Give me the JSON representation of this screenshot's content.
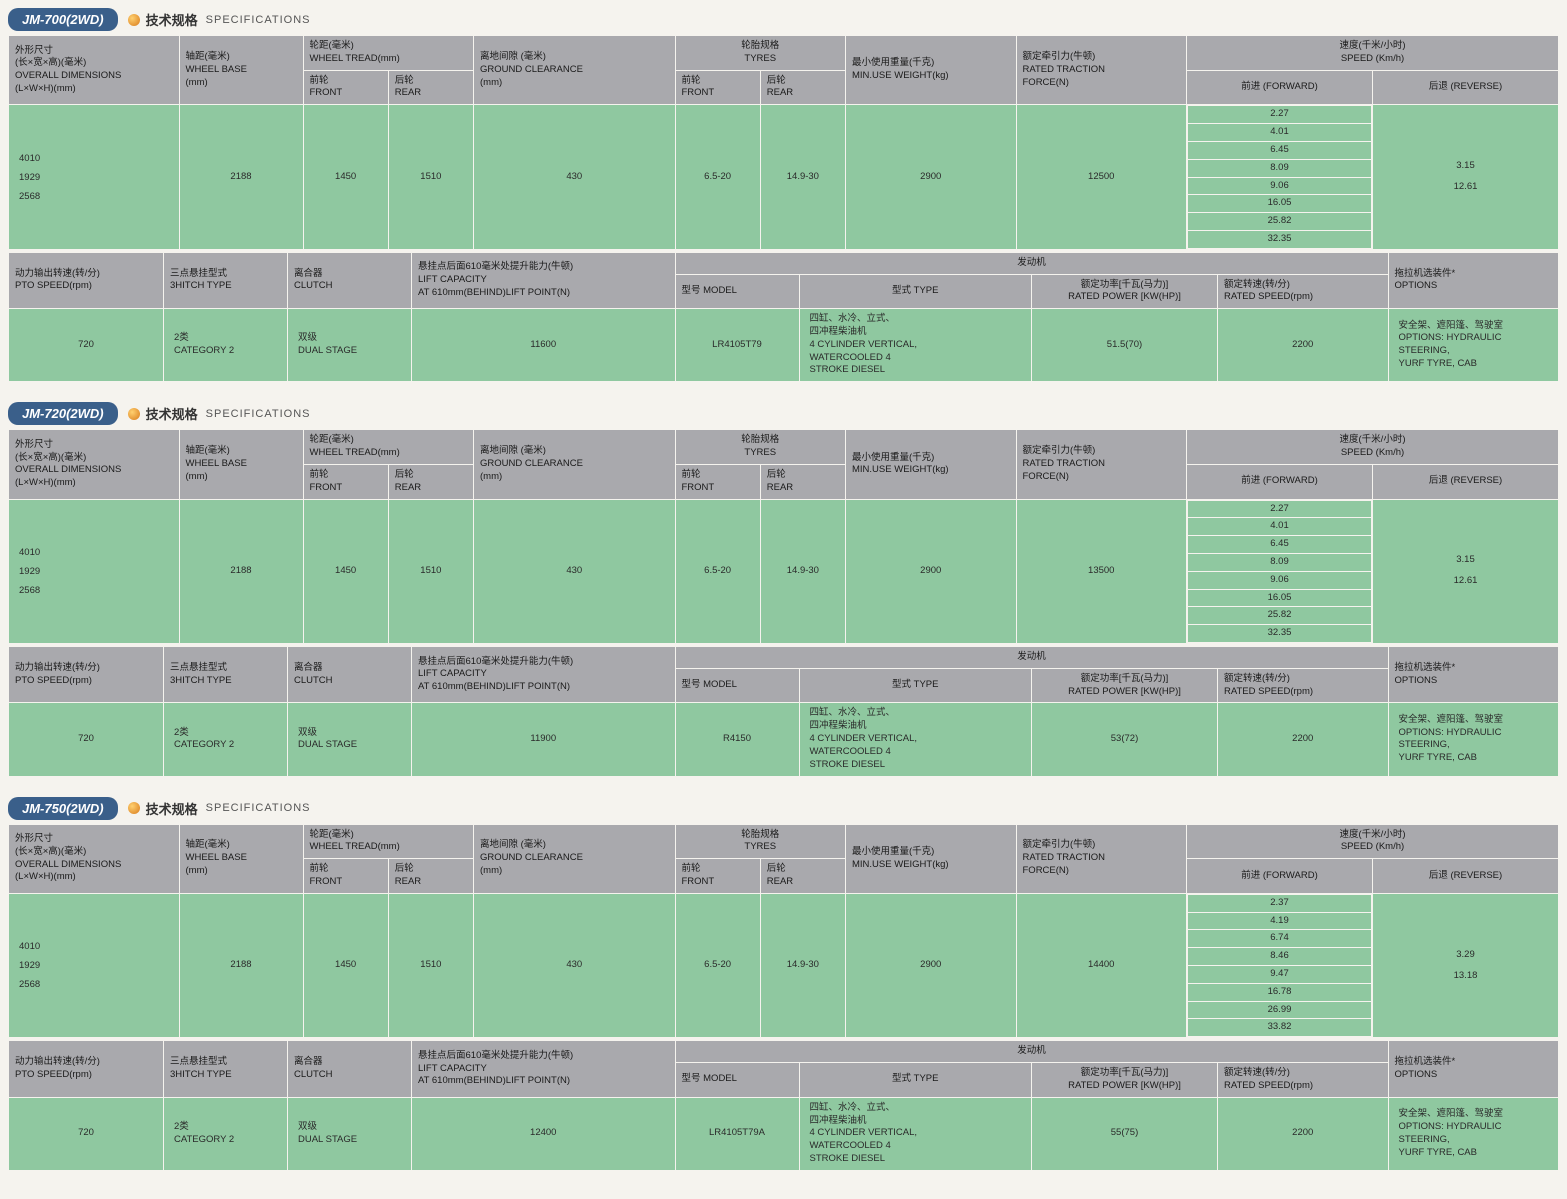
{
  "page": {
    "spec_cn": "技术规格",
    "spec_en": "SPECIFICATIONS"
  },
  "headers": {
    "dims": "外形尺寸\n(长×宽×高)(毫米)\nOVERALL DIMENSIONS\n(L×W×H)(mm)",
    "wheelbase": "轴距(毫米)\nWHEEL BASE\n(mm)",
    "tread": "轮距(毫米)\nWHEEL TREAD(mm)",
    "front": "前轮\nFRONT",
    "rear": "后轮\nREAR",
    "clearance": "离地间隙 (毫米)\nGROUND CLEARANCE\n(mm)",
    "tyres": "轮胎规格\nTYRES",
    "minweight": "最小使用重量(千克)\nMIN.USE WEIGHT(kg)",
    "traction": "额定牵引力(牛顿)\nRATED TRACTION\nFORCE(N)",
    "speed": "速度(千米/小时)\nSPEED (Km/h)",
    "fwd": "前进 (FORWARD)",
    "rev": "后退 (REVERSE)",
    "pto": "动力输出转速(转/分)\nPTO SPEED(rpm)",
    "hitch": "三点悬挂型式\n3HITCH TYPE",
    "clutch": "离合器\nCLUTCH",
    "lift": "悬挂点后面610毫米处提升能力(牛顿)\nLIFT CAPACITY\nAT 610mm(BEHIND)LIFT POINT(N)",
    "engine": "发动机",
    "modelh": "型号 MODEL",
    "typeh": "型式 TYPE",
    "power": "额定功率[千瓦(马力)]\nRATED POWER [KW(HP)]",
    "rspeed": "额定转速(转/分)\nRATED SPEED(rpm)",
    "options": "拖拉机选装件*\nOPTIONS"
  },
  "common": {
    "dims_vals": "4010\n1929\n2568",
    "hitch_val": "2类\nCATEGORY 2",
    "clutch_val": "双级\nDUAL STAGE",
    "engine_type": "四缸、水冷、立式、\n四冲程柴油机\n4  CYLINDER VERTICAL,\nWATERCOOLED 4\nSTROKE DIESEL",
    "options_val": "安全架、遮阳篷、驾驶室\nOPTIONS: HYDRAULIC\nSTEERING,\nYURF TYRE, CAB"
  },
  "models": [
    {
      "name": "JM-700(2WD)",
      "wheelbase": "2188",
      "tread_f": "1450",
      "tread_r": "1510",
      "clearance": "430",
      "tyre_f": "6.5-20",
      "tyre_r": "14.9-30",
      "minweight": "2900",
      "traction": "12500",
      "fwd": [
        "2.27",
        "4.01",
        "6.45",
        "8.09",
        "9.06",
        "16.05",
        "25.82",
        "32.35"
      ],
      "rev": "3.15\n12.61",
      "pto": "720",
      "lift": "11600",
      "eng_model": "LR4105T79",
      "power": "51.5(70)",
      "rspeed": "2200"
    },
    {
      "name": "JM-720(2WD)",
      "wheelbase": "2188",
      "tread_f": "1450",
      "tread_r": "1510",
      "clearance": "430",
      "tyre_f": "6.5-20",
      "tyre_r": "14.9-30",
      "minweight": "2900",
      "traction": "13500",
      "fwd": [
        "2.27",
        "4.01",
        "6.45",
        "8.09",
        "9.06",
        "16.05",
        "25.82",
        "32.35"
      ],
      "rev": "3.15\n12.61",
      "pto": "720",
      "lift": "11900",
      "eng_model": "R4150",
      "power": "53(72)",
      "rspeed": "2200"
    },
    {
      "name": "JM-750(2WD)",
      "wheelbase": "2188",
      "tread_f": "1450",
      "tread_r": "1510",
      "clearance": "430",
      "tyre_f": "6.5-20",
      "tyre_r": "14.9-30",
      "minweight": "2900",
      "traction": "14400",
      "fwd": [
        "2.37",
        "4.19",
        "6.74",
        "8.46",
        "9.47",
        "16.78",
        "26.99",
        "33.82"
      ],
      "rev": "3.29\n13.18",
      "pto": "720",
      "lift": "12400",
      "eng_model": "LR4105T79A",
      "power": "55(75)",
      "rspeed": "2200"
    }
  ],
  "style": {
    "hdr_bg": "#a9a9ad",
    "val_bg": "#8fc8a0",
    "badge_bg": "#3a5f8a",
    "page_bg": "#f5f3ee",
    "border": "#f5f3ee"
  }
}
